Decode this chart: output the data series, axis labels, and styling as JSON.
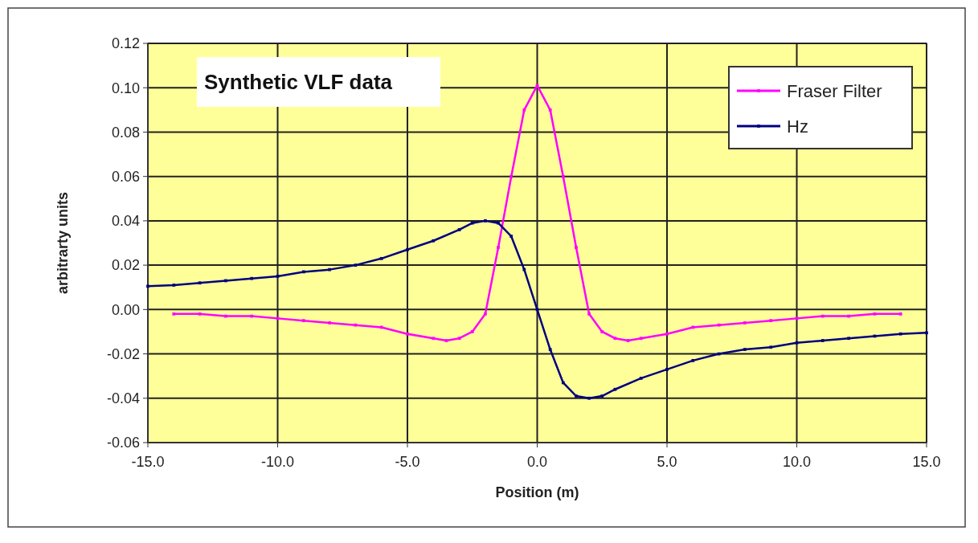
{
  "chart_data": {
    "type": "line",
    "title": "Synthetic VLF data",
    "xlabel": "Position (m)",
    "ylabel": "arbitrarty units",
    "xlim": [
      -15,
      15
    ],
    "xticks": [
      {
        "value": -15,
        "label": "-15.0"
      },
      {
        "value": -10,
        "label": "-10.0"
      },
      {
        "value": -5,
        "label": "-5.0"
      },
      {
        "value": 0,
        "label": "0.0"
      },
      {
        "value": 5,
        "label": "5.0"
      },
      {
        "value": 10,
        "label": "10.0"
      },
      {
        "value": 15,
        "label": "15.0"
      }
    ],
    "ylim": [
      -0.06,
      0.12
    ],
    "yticks": [
      {
        "value": -0.06,
        "label": "-0.06"
      },
      {
        "value": -0.04,
        "label": "-0.04"
      },
      {
        "value": -0.02,
        "label": "-0.02"
      },
      {
        "value": 0,
        "label": "0.00"
      },
      {
        "value": 0.02,
        "label": "0.02"
      },
      {
        "value": 0.04,
        "label": "0.04"
      },
      {
        "value": 0.06,
        "label": "0.06"
      },
      {
        "value": 0.08,
        "label": "0.08"
      },
      {
        "value": 0.1,
        "label": "0.10"
      },
      {
        "value": 0.12,
        "label": "0.12"
      }
    ],
    "grid": true,
    "legend": "top right",
    "marker": "square",
    "line_style": "solid",
    "series": [
      {
        "name": "Fraser Filter",
        "color": "#ff00ff",
        "x": [
          -14,
          -13,
          -12,
          -11,
          -10,
          -9,
          -8,
          -7,
          -6,
          -5,
          -4,
          -3.5,
          -3,
          -2.5,
          -2,
          -1.5,
          -1,
          -0.5,
          0,
          0.5,
          1,
          1.5,
          2,
          2.5,
          3,
          3.5,
          4,
          5,
          6,
          7,
          8,
          9,
          10,
          11,
          12,
          13,
          14
        ],
        "values": [
          -0.002,
          -0.002,
          -0.003,
          -0.003,
          -0.004,
          -0.005,
          -0.006,
          -0.007,
          -0.008,
          -0.011,
          -0.013,
          -0.014,
          -0.013,
          -0.01,
          -0.002,
          0.028,
          0.06,
          0.09,
          0.101,
          0.09,
          0.06,
          0.028,
          -0.002,
          -0.01,
          -0.013,
          -0.014,
          -0.013,
          -0.011,
          -0.008,
          -0.007,
          -0.006,
          -0.005,
          -0.004,
          -0.003,
          -0.003,
          -0.002,
          -0.002
        ]
      },
      {
        "name": "Hz",
        "color": "#000080",
        "x": [
          -15,
          -14,
          -13,
          -12,
          -11,
          -10,
          -9,
          -8,
          -7,
          -6,
          -5,
          -4,
          -3,
          -2.5,
          -2,
          -1.5,
          -1,
          -0.5,
          0,
          0.5,
          1,
          1.5,
          2,
          2.5,
          3,
          4,
          5,
          6,
          7,
          8,
          9,
          10,
          11,
          12,
          13,
          14,
          15
        ],
        "values": [
          0.0105,
          0.011,
          0.012,
          0.013,
          0.014,
          0.015,
          0.017,
          0.018,
          0.02,
          0.023,
          0.027,
          0.031,
          0.036,
          0.039,
          0.04,
          0.039,
          0.033,
          0.018,
          0,
          -0.018,
          -0.033,
          -0.039,
          -0.04,
          -0.039,
          -0.036,
          -0.031,
          -0.027,
          -0.023,
          -0.02,
          -0.018,
          -0.017,
          -0.015,
          -0.014,
          -0.013,
          -0.012,
          -0.011,
          -0.0105
        ]
      }
    ]
  }
}
